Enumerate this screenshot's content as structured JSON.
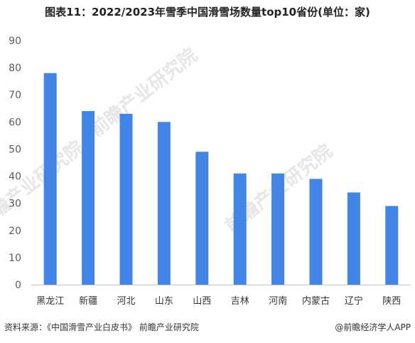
{
  "title": "图表11：2022/2023年雪季中国滑雪场数量top10省份(单位：家)",
  "watermark": "前瞻产业研究院",
  "source_note": "资料来源：《中国滑雪产业白皮书》 前瞻产业研究院",
  "credit": "@前瞻经济学人APP",
  "chart_data": {
    "type": "bar",
    "title": "",
    "xlabel": "",
    "ylabel": "",
    "ylim": [
      0,
      90
    ],
    "yticks": [
      0,
      10,
      20,
      30,
      40,
      50,
      60,
      70,
      80,
      90
    ],
    "grid": false,
    "categories": [
      "黑龙江",
      "新疆",
      "河北",
      "山东",
      "山西",
      "吉林",
      "河南",
      "内蒙古",
      "辽宁",
      "陕西"
    ],
    "values": [
      78,
      64,
      63,
      60,
      49,
      41,
      41,
      39,
      34,
      29
    ],
    "colors": {
      "bar": "#4285e6",
      "axis": "#bfbfbf",
      "text": "#595959"
    }
  }
}
